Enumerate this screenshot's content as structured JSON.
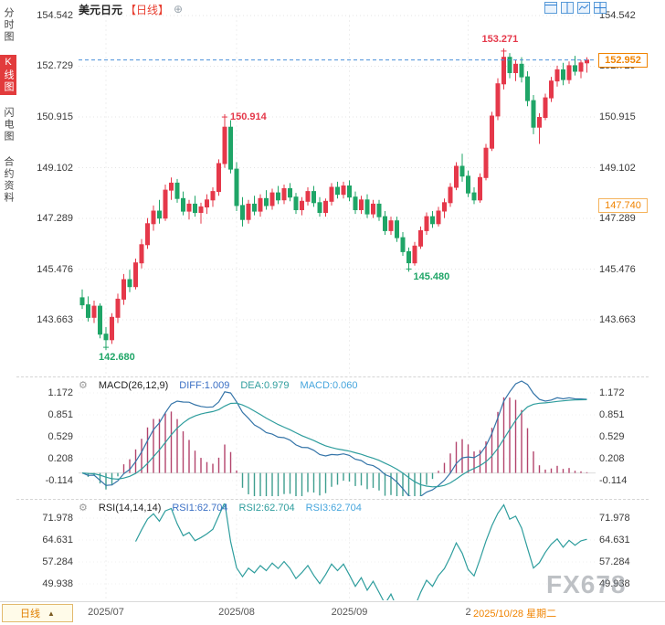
{
  "header": {
    "symbol": "美元日元",
    "period_tag": "【日线】"
  },
  "icons": {
    "add": "⊕",
    "gear": "⚙",
    "arrow_up": "▲"
  },
  "sidebar": {
    "items": [
      {
        "label": "分时图",
        "active": false
      },
      {
        "label": "K线图",
        "active": true
      },
      {
        "label": "闪电图",
        "active": false
      },
      {
        "label": "合约资料",
        "active": false
      }
    ]
  },
  "main_axis": {
    "labels": [
      "154.542",
      "152.729",
      "150.915",
      "149.102",
      "147.289",
      "145.476",
      "143.663"
    ]
  },
  "price_badges": {
    "current": "152.952",
    "level": "147.740"
  },
  "macd": {
    "title": "MACD(26,12,9)",
    "diff": "DIFF:1.009",
    "dea": "DEA:0.979",
    "macd": "MACD:0.060",
    "axis_labels": [
      "1.172",
      "0.851",
      "0.529",
      "0.208",
      "-0.114"
    ]
  },
  "rsi": {
    "title": "RSI(14,14,14)",
    "rsi1": "RSI1:62.704",
    "rsi2": "RSI2:62.704",
    "rsi3": "RSI3:62.704",
    "axis_labels": [
      "71.978",
      "64.631",
      "57.284",
      "49.938"
    ]
  },
  "time_axis": {
    "labels": [
      {
        "text": "2025/07",
        "tick_index": 4
      },
      {
        "text": "2025/08",
        "tick_index": 26
      },
      {
        "text": "2025/09",
        "tick_index": 45
      },
      {
        "text": "2",
        "tick_index": 65
      }
    ],
    "highlight": "2025/10/28 星期二"
  },
  "bottom_bar": {
    "period": "日线"
  },
  "watermark": "FX678",
  "colors": {
    "up": "#e5384a",
    "down": "#1fa567",
    "accent_orange": "#f08300",
    "dashed_line": "#4a90d9",
    "diff_line": "#3474a8",
    "dea_line": "#2e9d9d",
    "hist_pos": "#b3446c",
    "hist_neg": "#3f9e8f",
    "rsi_line": "#2e9d9d",
    "grid": "#e4e4e4"
  },
  "chart_data": {
    "type": "candlestick",
    "title": "美元日元 日线 (USD/JPY daily)",
    "y_ticks": [
      154.542,
      152.729,
      150.915,
      149.102,
      147.289,
      145.476,
      143.663
    ],
    "current_price": 152.952,
    "level_price": 147.74,
    "period_high": 153.271,
    "period_low": 142.68,
    "candles": [
      [
        144.45,
        144.75,
        144.05,
        144.2
      ],
      [
        144.2,
        144.5,
        143.6,
        143.75
      ],
      [
        143.75,
        144.35,
        143.55,
        144.15
      ],
      [
        144.15,
        144.25,
        143.0,
        143.15
      ],
      [
        143.15,
        143.4,
        142.68,
        142.95
      ],
      [
        142.95,
        143.9,
        142.8,
        143.75
      ],
      [
        143.75,
        144.6,
        143.55,
        144.4
      ],
      [
        144.4,
        145.3,
        144.2,
        145.1
      ],
      [
        145.1,
        145.45,
        144.65,
        144.85
      ],
      [
        144.85,
        145.85,
        144.75,
        145.7
      ],
      [
        145.7,
        146.55,
        145.5,
        146.35
      ],
      [
        146.35,
        147.3,
        146.2,
        147.1
      ],
      [
        147.1,
        147.75,
        146.85,
        147.55
      ],
      [
        147.55,
        147.95,
        147.1,
        147.3
      ],
      [
        147.3,
        148.5,
        147.2,
        148.3
      ],
      [
        148.3,
        148.75,
        147.95,
        148.55
      ],
      [
        148.55,
        148.7,
        147.85,
        148.0
      ],
      [
        148.0,
        148.25,
        147.4,
        147.55
      ],
      [
        147.55,
        147.95,
        147.25,
        147.8
      ],
      [
        147.8,
        148.1,
        147.35,
        147.5
      ],
      [
        147.5,
        147.85,
        147.1,
        147.7
      ],
      [
        147.7,
        148.15,
        147.45,
        147.95
      ],
      [
        147.95,
        148.4,
        147.7,
        148.25
      ],
      [
        148.25,
        149.4,
        148.1,
        149.25
      ],
      [
        149.25,
        150.914,
        149.1,
        150.55
      ],
      [
        150.55,
        150.8,
        148.9,
        149.05
      ],
      [
        149.05,
        149.3,
        147.55,
        147.75
      ],
      [
        147.75,
        148.05,
        147.0,
        147.25
      ],
      [
        147.25,
        147.95,
        147.1,
        147.8
      ],
      [
        147.8,
        148.1,
        147.4,
        147.55
      ],
      [
        147.55,
        148.15,
        147.35,
        148.0
      ],
      [
        148.0,
        148.3,
        147.6,
        147.75
      ],
      [
        147.75,
        148.35,
        147.6,
        148.2
      ],
      [
        148.2,
        148.45,
        147.8,
        147.95
      ],
      [
        147.95,
        148.5,
        147.8,
        148.35
      ],
      [
        148.35,
        148.55,
        147.9,
        148.05
      ],
      [
        148.05,
        148.2,
        147.45,
        147.6
      ],
      [
        147.6,
        148.05,
        147.4,
        147.9
      ],
      [
        147.9,
        148.4,
        147.75,
        148.25
      ],
      [
        148.25,
        148.45,
        147.7,
        147.85
      ],
      [
        147.85,
        148.05,
        147.35,
        147.5
      ],
      [
        147.5,
        148.0,
        147.35,
        147.9
      ],
      [
        147.9,
        148.55,
        147.75,
        148.4
      ],
      [
        148.4,
        148.6,
        148.0,
        148.15
      ],
      [
        148.15,
        148.6,
        148.0,
        148.45
      ],
      [
        148.45,
        148.65,
        147.9,
        148.05
      ],
      [
        148.05,
        148.25,
        147.45,
        147.6
      ],
      [
        147.6,
        148.1,
        147.45,
        147.95
      ],
      [
        147.95,
        148.15,
        147.3,
        147.45
      ],
      [
        147.45,
        147.95,
        147.3,
        147.8
      ],
      [
        147.8,
        147.95,
        147.2,
        147.35
      ],
      [
        147.35,
        147.55,
        146.7,
        146.85
      ],
      [
        146.85,
        147.35,
        146.7,
        147.2
      ],
      [
        147.2,
        147.35,
        146.45,
        146.6
      ],
      [
        146.6,
        146.8,
        145.95,
        146.1
      ],
      [
        146.1,
        146.25,
        145.48,
        145.7
      ],
      [
        145.7,
        146.45,
        145.6,
        146.3
      ],
      [
        146.3,
        147.0,
        146.2,
        146.85
      ],
      [
        146.85,
        147.5,
        146.7,
        147.35
      ],
      [
        147.35,
        147.55,
        146.95,
        147.1
      ],
      [
        147.1,
        147.7,
        147.0,
        147.55
      ],
      [
        147.55,
        148.0,
        147.3,
        147.85
      ],
      [
        147.85,
        148.55,
        147.7,
        148.4
      ],
      [
        148.4,
        149.3,
        148.3,
        149.15
      ],
      [
        149.15,
        149.6,
        148.6,
        148.8
      ],
      [
        148.8,
        149.0,
        148.05,
        148.2
      ],
      [
        148.2,
        148.4,
        147.8,
        147.95
      ],
      [
        147.95,
        148.9,
        147.85,
        148.75
      ],
      [
        148.75,
        149.95,
        148.65,
        149.8
      ],
      [
        149.8,
        151.1,
        149.7,
        150.95
      ],
      [
        150.95,
        152.3,
        150.8,
        152.1
      ],
      [
        152.1,
        153.271,
        151.9,
        153.05
      ],
      [
        153.05,
        153.2,
        152.3,
        152.5
      ],
      [
        152.5,
        152.95,
        152.2,
        152.8
      ],
      [
        152.8,
        153.05,
        152.15,
        152.35
      ],
      [
        152.35,
        152.55,
        151.3,
        151.5
      ],
      [
        151.5,
        151.7,
        150.3,
        150.55
      ],
      [
        150.55,
        151.05,
        149.95,
        150.9
      ],
      [
        150.9,
        151.75,
        150.8,
        151.6
      ],
      [
        151.6,
        152.35,
        151.45,
        152.2
      ],
      [
        152.2,
        152.75,
        152.0,
        152.6
      ],
      [
        152.6,
        152.85,
        152.05,
        152.25
      ],
      [
        152.25,
        152.9,
        152.1,
        152.75
      ],
      [
        152.75,
        153.1,
        152.4,
        152.55
      ],
      [
        152.55,
        152.95,
        152.3,
        152.85
      ],
      [
        152.85,
        153.05,
        152.5,
        152.952
      ]
    ],
    "annotations": [
      {
        "index": 24,
        "point": "high",
        "text": "150.914",
        "placement": "right"
      },
      {
        "index": 71,
        "point": "high",
        "text": "153.271",
        "placement": "above"
      },
      {
        "index": 55,
        "point": "low",
        "text": "145.480",
        "placement": "below-right"
      },
      {
        "index": 4,
        "point": "low",
        "text": "142.680",
        "placement": "below"
      }
    ],
    "macd": {
      "params": [
        26,
        12,
        9
      ],
      "diff": 1.009,
      "dea": 0.979,
      "macd": 0.06,
      "y_ticks": [
        1.172,
        0.851,
        0.529,
        0.208,
        -0.114
      ]
    },
    "rsi": {
      "params": [
        14,
        14,
        14
      ],
      "values": [
        62.704,
        62.704,
        62.704
      ],
      "y_ticks": [
        71.978,
        64.631,
        57.284,
        49.938
      ]
    }
  }
}
